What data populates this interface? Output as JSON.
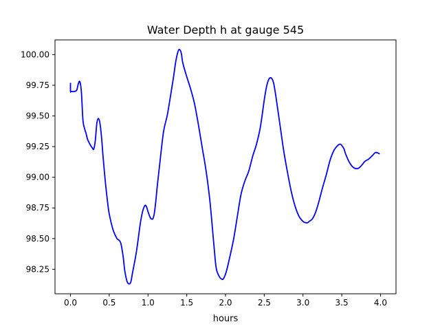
{
  "chart_data": {
    "type": "line",
    "title": "Water Depth h at gauge 545",
    "xlabel": "hours",
    "ylabel": "",
    "xlim": [
      -0.2,
      4.2
    ],
    "ylim": [
      98.05,
      100.12
    ],
    "xticks": [
      0.0,
      0.5,
      1.0,
      1.5,
      2.0,
      2.5,
      3.0,
      3.5,
      4.0
    ],
    "xtick_labels": [
      "0.0",
      "0.5",
      "1.0",
      "1.5",
      "2.0",
      "2.5",
      "3.0",
      "3.5",
      "4.0"
    ],
    "yticks": [
      98.25,
      98.5,
      98.75,
      99.0,
      99.25,
      99.5,
      99.75,
      100.0
    ],
    "ytick_labels": [
      "98.25",
      "98.50",
      "98.75",
      "99.00",
      "99.25",
      "99.50",
      "99.75",
      "100.00"
    ],
    "grid": false,
    "legend": "none",
    "series": [
      {
        "color": "#0000ff",
        "x": [
          0.0,
          0.0,
          0.01,
          0.05,
          0.08,
          0.1,
          0.12,
          0.14,
          0.16,
          0.18,
          0.2,
          0.22,
          0.25,
          0.28,
          0.3,
          0.32,
          0.34,
          0.36,
          0.38,
          0.4,
          0.42,
          0.45,
          0.48,
          0.5,
          0.55,
          0.6,
          0.62,
          0.65,
          0.68,
          0.7,
          0.73,
          0.76,
          0.78,
          0.8,
          0.85,
          0.9,
          0.93,
          0.96,
          0.98,
          1.0,
          1.03,
          1.06,
          1.08,
          1.1,
          1.12,
          1.15,
          1.2,
          1.25,
          1.3,
          1.33,
          1.36,
          1.39,
          1.41,
          1.43,
          1.45,
          1.5,
          1.55,
          1.6,
          1.65,
          1.7,
          1.75,
          1.8,
          1.85,
          1.88,
          1.92,
          1.95,
          1.97,
          2.0,
          2.03,
          2.1,
          2.15,
          2.2,
          2.25,
          2.3,
          2.35,
          2.4,
          2.45,
          2.5,
          2.53,
          2.56,
          2.59,
          2.62,
          2.65,
          2.7,
          2.75,
          2.8,
          2.85,
          2.9,
          2.95,
          3.0,
          3.03,
          3.06,
          3.08,
          3.12,
          3.16,
          3.2,
          3.25,
          3.3,
          3.35,
          3.4,
          3.45,
          3.48,
          3.5,
          3.53,
          3.55,
          3.6,
          3.65,
          3.7,
          3.73,
          3.76,
          3.8,
          3.85,
          3.9,
          3.93,
          3.96,
          3.99
        ],
        "y": [
          99.77,
          99.7,
          99.7,
          99.7,
          99.71,
          99.76,
          99.78,
          99.7,
          99.47,
          99.4,
          99.36,
          99.31,
          99.27,
          99.24,
          99.23,
          99.3,
          99.44,
          99.48,
          99.44,
          99.33,
          99.17,
          98.96,
          98.79,
          98.7,
          98.57,
          98.5,
          98.49,
          98.46,
          98.35,
          98.24,
          98.15,
          98.13,
          98.15,
          98.22,
          98.39,
          98.62,
          98.72,
          98.77,
          98.76,
          98.72,
          98.67,
          98.66,
          98.7,
          98.8,
          98.93,
          99.1,
          99.37,
          99.51,
          99.7,
          99.82,
          99.95,
          100.03,
          100.04,
          100.01,
          99.93,
          99.82,
          99.72,
          99.6,
          99.43,
          99.24,
          99.05,
          98.8,
          98.45,
          98.26,
          98.19,
          98.17,
          98.17,
          98.21,
          98.28,
          98.48,
          98.67,
          98.86,
          98.97,
          99.05,
          99.17,
          99.27,
          99.41,
          99.63,
          99.74,
          99.8,
          99.81,
          99.77,
          99.66,
          99.44,
          99.22,
          99.04,
          98.88,
          98.76,
          98.68,
          98.64,
          98.63,
          98.63,
          98.64,
          98.66,
          98.71,
          98.79,
          98.91,
          99.02,
          99.14,
          99.22,
          99.26,
          99.27,
          99.26,
          99.23,
          99.19,
          99.12,
          99.08,
          99.07,
          99.08,
          99.1,
          99.13,
          99.15,
          99.18,
          99.2,
          99.2,
          99.19
        ]
      }
    ]
  }
}
